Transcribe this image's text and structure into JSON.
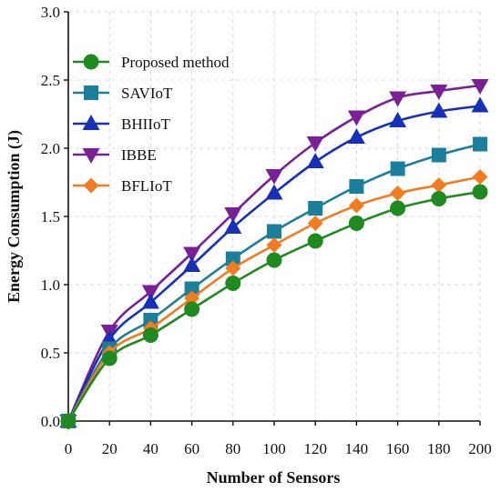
{
  "chart_data": {
    "type": "line",
    "title": "",
    "xlabel": "Number of Sensors",
    "ylabel": "Energy Consumption (J)",
    "xlim": [
      0,
      200
    ],
    "ylim": [
      0.0,
      3.0
    ],
    "x_ticks": [
      0,
      20,
      40,
      60,
      80,
      100,
      120,
      140,
      160,
      180,
      200
    ],
    "y_ticks": [
      "0.0",
      "0.5",
      "1.0",
      "1.5",
      "2.0",
      "2.5",
      "3.0"
    ],
    "grid": true,
    "legend_position": "top-left",
    "x": [
      0,
      20,
      40,
      60,
      80,
      100,
      120,
      140,
      160,
      180,
      200
    ],
    "series": [
      {
        "name": "Proposed method",
        "color": "#1f8a1f",
        "marker": "circle",
        "values": [
          0.0,
          0.46,
          0.63,
          0.82,
          1.01,
          1.18,
          1.32,
          1.45,
          1.56,
          1.63,
          1.68
        ]
      },
      {
        "name": "SAVIoT",
        "color": "#1a7f9a",
        "marker": "square",
        "values": [
          0.0,
          0.53,
          0.74,
          0.97,
          1.19,
          1.39,
          1.56,
          1.72,
          1.85,
          1.95,
          2.03
        ]
      },
      {
        "name": "BHIIoT",
        "color": "#1631b8",
        "marker": "triangle-up",
        "values": [
          0.0,
          0.6,
          0.87,
          1.14,
          1.42,
          1.67,
          1.9,
          2.08,
          2.2,
          2.27,
          2.31
        ]
      },
      {
        "name": "IBBE",
        "color": "#7a1f98",
        "marker": "triangle-down",
        "values": [
          0.0,
          0.66,
          0.95,
          1.23,
          1.52,
          1.8,
          2.04,
          2.23,
          2.37,
          2.42,
          2.46
        ]
      },
      {
        "name": "BFLIoT",
        "color": "#f47b20",
        "marker": "diamond",
        "values": [
          0.0,
          0.5,
          0.68,
          0.9,
          1.12,
          1.29,
          1.45,
          1.58,
          1.67,
          1.73,
          1.79
        ]
      }
    ]
  }
}
